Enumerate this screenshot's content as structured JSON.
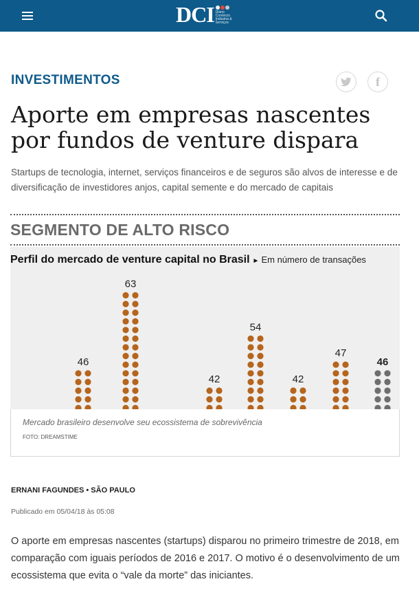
{
  "header": {
    "logo_text": "DCI",
    "logo_subtitle": "Diário Comércio Indústria & Serviços",
    "menu_icon": "hamburger-icon",
    "search_icon": "search-icon",
    "bg_color": "#0e5a8a"
  },
  "article": {
    "category": "INVESTIMENTOS",
    "share": {
      "twitter_icon": "twitter-icon",
      "facebook_icon": "facebook-icon"
    },
    "headline": "Aporte em empresas nascentes por fundos de venture dispara",
    "lead": "Startups de tecnologia, internet, serviços financeiros e de seguros são alvos de interesse e de diversificação de investidores anjos, capital semente e do mercado de capitais",
    "figure": {
      "title": "SEGMENTO DE ALTO RISCO",
      "caption": "Mercado brasileiro desenvolve seu ecossistema de sobrevivência",
      "credit": "FOTO: DREAMSTIME"
    },
    "byline": "ERNANI FAGUNDES • SÃO PAULO",
    "published": "Publicado em 05/04/18 às 05:08",
    "body": "O aporte em empresas nascentes (startups) disparou no primeiro trimestre de 2018, em comparação com iguais períodos de 2016 e 2017. O motivo é o desenvolvimento de um ecossistema que evita o “vale da morte” das iniciantes."
  },
  "chart_data": {
    "type": "bar",
    "title": "Perfil do mercado de venture capital no Brasil",
    "arrow": "►",
    "subtitle": "Em número de transações",
    "values": [
      46,
      63,
      42,
      54,
      42,
      47,
      46
    ],
    "dot_colors": [
      "#b5651d",
      "#b5651d",
      "#b5651d",
      "#b5651d",
      "#b5651d",
      "#b5651d",
      "#6e6e6e"
    ],
    "highlight_last": true
  }
}
